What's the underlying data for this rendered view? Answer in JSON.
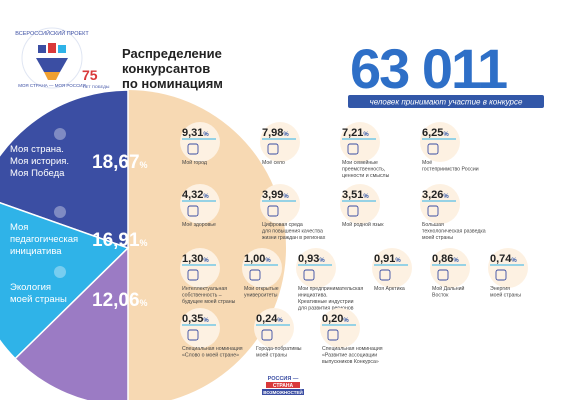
{
  "header": {
    "logo_ring_text": "ВСЕРОССИЙСКИЙ ПРОЕКТ",
    "logo_ring_text_bottom": "МОЯ СТРАНА — МОЯ РОССИЯ",
    "logo_75_number": "75",
    "logo_75_text": "ЛЕТ ПОБЕДЫ",
    "title_line1": "Распределение",
    "title_line2": "конкурсантов",
    "title_line3": "по номинациям",
    "big_number": "63 011",
    "big_number_caption": "человек принимают участие в конкурсе"
  },
  "footer": {
    "logo_line1": "РОССИЯ —",
    "logo_line2": "СТРАНА",
    "logo_line3": "ВОЗМОЖНОСТЕЙ"
  },
  "colors": {
    "dark_blue": "#3b4ea3",
    "light_blue": "#2fb3e8",
    "purple": "#9b7bc4",
    "peach": "#f7d9b3",
    "accent_blue": "#3257a8",
    "text_dark": "#222222",
    "text_gray": "#555555"
  },
  "chart_data": {
    "type": "pie",
    "title": "Распределение конкурсантов по номинациям",
    "unit": "%",
    "major": [
      {
        "label": [
          "Моя страна.",
          "Моя история.",
          "Моя Победа"
        ],
        "value": 18.67,
        "display": "18,67",
        "color": "#3b4ea3",
        "icon": "russia-map-icon"
      },
      {
        "label": [
          "Моя",
          "педагогическая",
          "инициатива"
        ],
        "value": 16.91,
        "display": "16,91",
        "color": "#2fb3e8",
        "icon": "bird-icon"
      },
      {
        "label": [
          "Экология",
          "моей страны"
        ],
        "value": 12.06,
        "display": "12,06",
        "color": "#9b7bc4",
        "icon": "leaf-icon"
      }
    ],
    "others_color": "#f7d9b3",
    "minor": [
      {
        "value": 9.31,
        "display": "9,31",
        "label": [
          "Мой город"
        ],
        "icon": "city-icon"
      },
      {
        "value": 7.98,
        "display": "7,98",
        "label": [
          "Моё село"
        ],
        "icon": "tractor-icon"
      },
      {
        "value": 7.21,
        "display": "7,21",
        "label": [
          "Мои семейные",
          "преемственность,",
          "ценности и смыслы"
        ],
        "icon": "family-icon"
      },
      {
        "value": 6.25,
        "display": "6,25",
        "label": [
          "Моё",
          "гостеприимство России"
        ],
        "icon": "bell-icon"
      },
      {
        "value": 4.32,
        "display": "4,32",
        "label": [
          "Моё здоровье"
        ],
        "icon": "dumbbell-icon"
      },
      {
        "value": 3.99,
        "display": "3,99",
        "label": [
          "Цифровая среда",
          "для повышения качества",
          "жизни граждан в регионах"
        ],
        "icon": "at-sign-icon"
      },
      {
        "value": 3.51,
        "display": "3,51",
        "label": [
          "Мой родной язык"
        ],
        "icon": "speech-icon"
      },
      {
        "value": 3.26,
        "display": "3,26",
        "label": [
          "Большая",
          "технологическая разведка",
          "моей страны"
        ],
        "icon": "person-icon"
      },
      {
        "value": 1.3,
        "display": "1,30",
        "label": [
          "Интеллектуальная",
          "собственность –",
          "будущее моей страны"
        ],
        "icon": "brain-icon"
      },
      {
        "value": 1.0,
        "display": "1,00",
        "label": [
          "Мои открытые",
          "университеты"
        ],
        "icon": "graduation-cap-icon"
      },
      {
        "value": 0.93,
        "display": "0,93",
        "label": [
          "Мои предпринимательская",
          "инициатива.",
          "Креативные индустрии",
          "для развития регионов"
        ],
        "icon": "idea-icon"
      },
      {
        "value": 0.91,
        "display": "0,91",
        "label": [
          "Моя Арктика"
        ],
        "icon": "arctic-icon"
      },
      {
        "value": 0.86,
        "display": "0,86",
        "label": [
          "Мой Дальний",
          "Восток"
        ],
        "icon": "tiger-icon"
      },
      {
        "value": 0.74,
        "display": "0,74",
        "label": [
          "Энергия",
          "моей страны"
        ],
        "icon": "solar-panel-icon"
      },
      {
        "value": 0.35,
        "display": "0,35",
        "label": [
          "Специальная номинация",
          "«Слово о моей стране»"
        ],
        "icon": "book-icon"
      },
      {
        "value": 0.24,
        "display": "0,24",
        "label": [
          "Города-побратимы",
          "моей страны"
        ],
        "icon": "handshake-icon"
      },
      {
        "value": 0.2,
        "display": "0,20",
        "label": [
          "Специальная номинация",
          "«Развитие ассоциации",
          "выпускников Конкурса»"
        ],
        "icon": "people-group-icon"
      }
    ]
  }
}
